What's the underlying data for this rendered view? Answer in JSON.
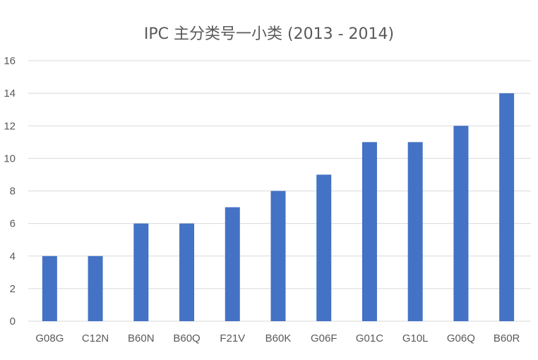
{
  "chart_data": {
    "type": "bar",
    "title": "IPC 主分类号一小类 (2013 - 2014)",
    "categories": [
      "G08G",
      "C12N",
      "B60N",
      "B60Q",
      "F21V",
      "B60K",
      "G06F",
      "G01C",
      "G10L",
      "G06Q",
      "B60R"
    ],
    "values": [
      4,
      4,
      6,
      6,
      7,
      8,
      9,
      11,
      11,
      12,
      14
    ],
    "xlabel": "",
    "ylabel": "",
    "ylim": [
      0,
      16
    ],
    "yticks": [
      "0",
      "2",
      "4",
      "6",
      "8",
      "10",
      "12",
      "14",
      "16"
    ],
    "grid": true,
    "legend": "none",
    "colors": {
      "bar": "#4472C4",
      "grid": "#D9D9D9",
      "text": "#595959"
    }
  }
}
